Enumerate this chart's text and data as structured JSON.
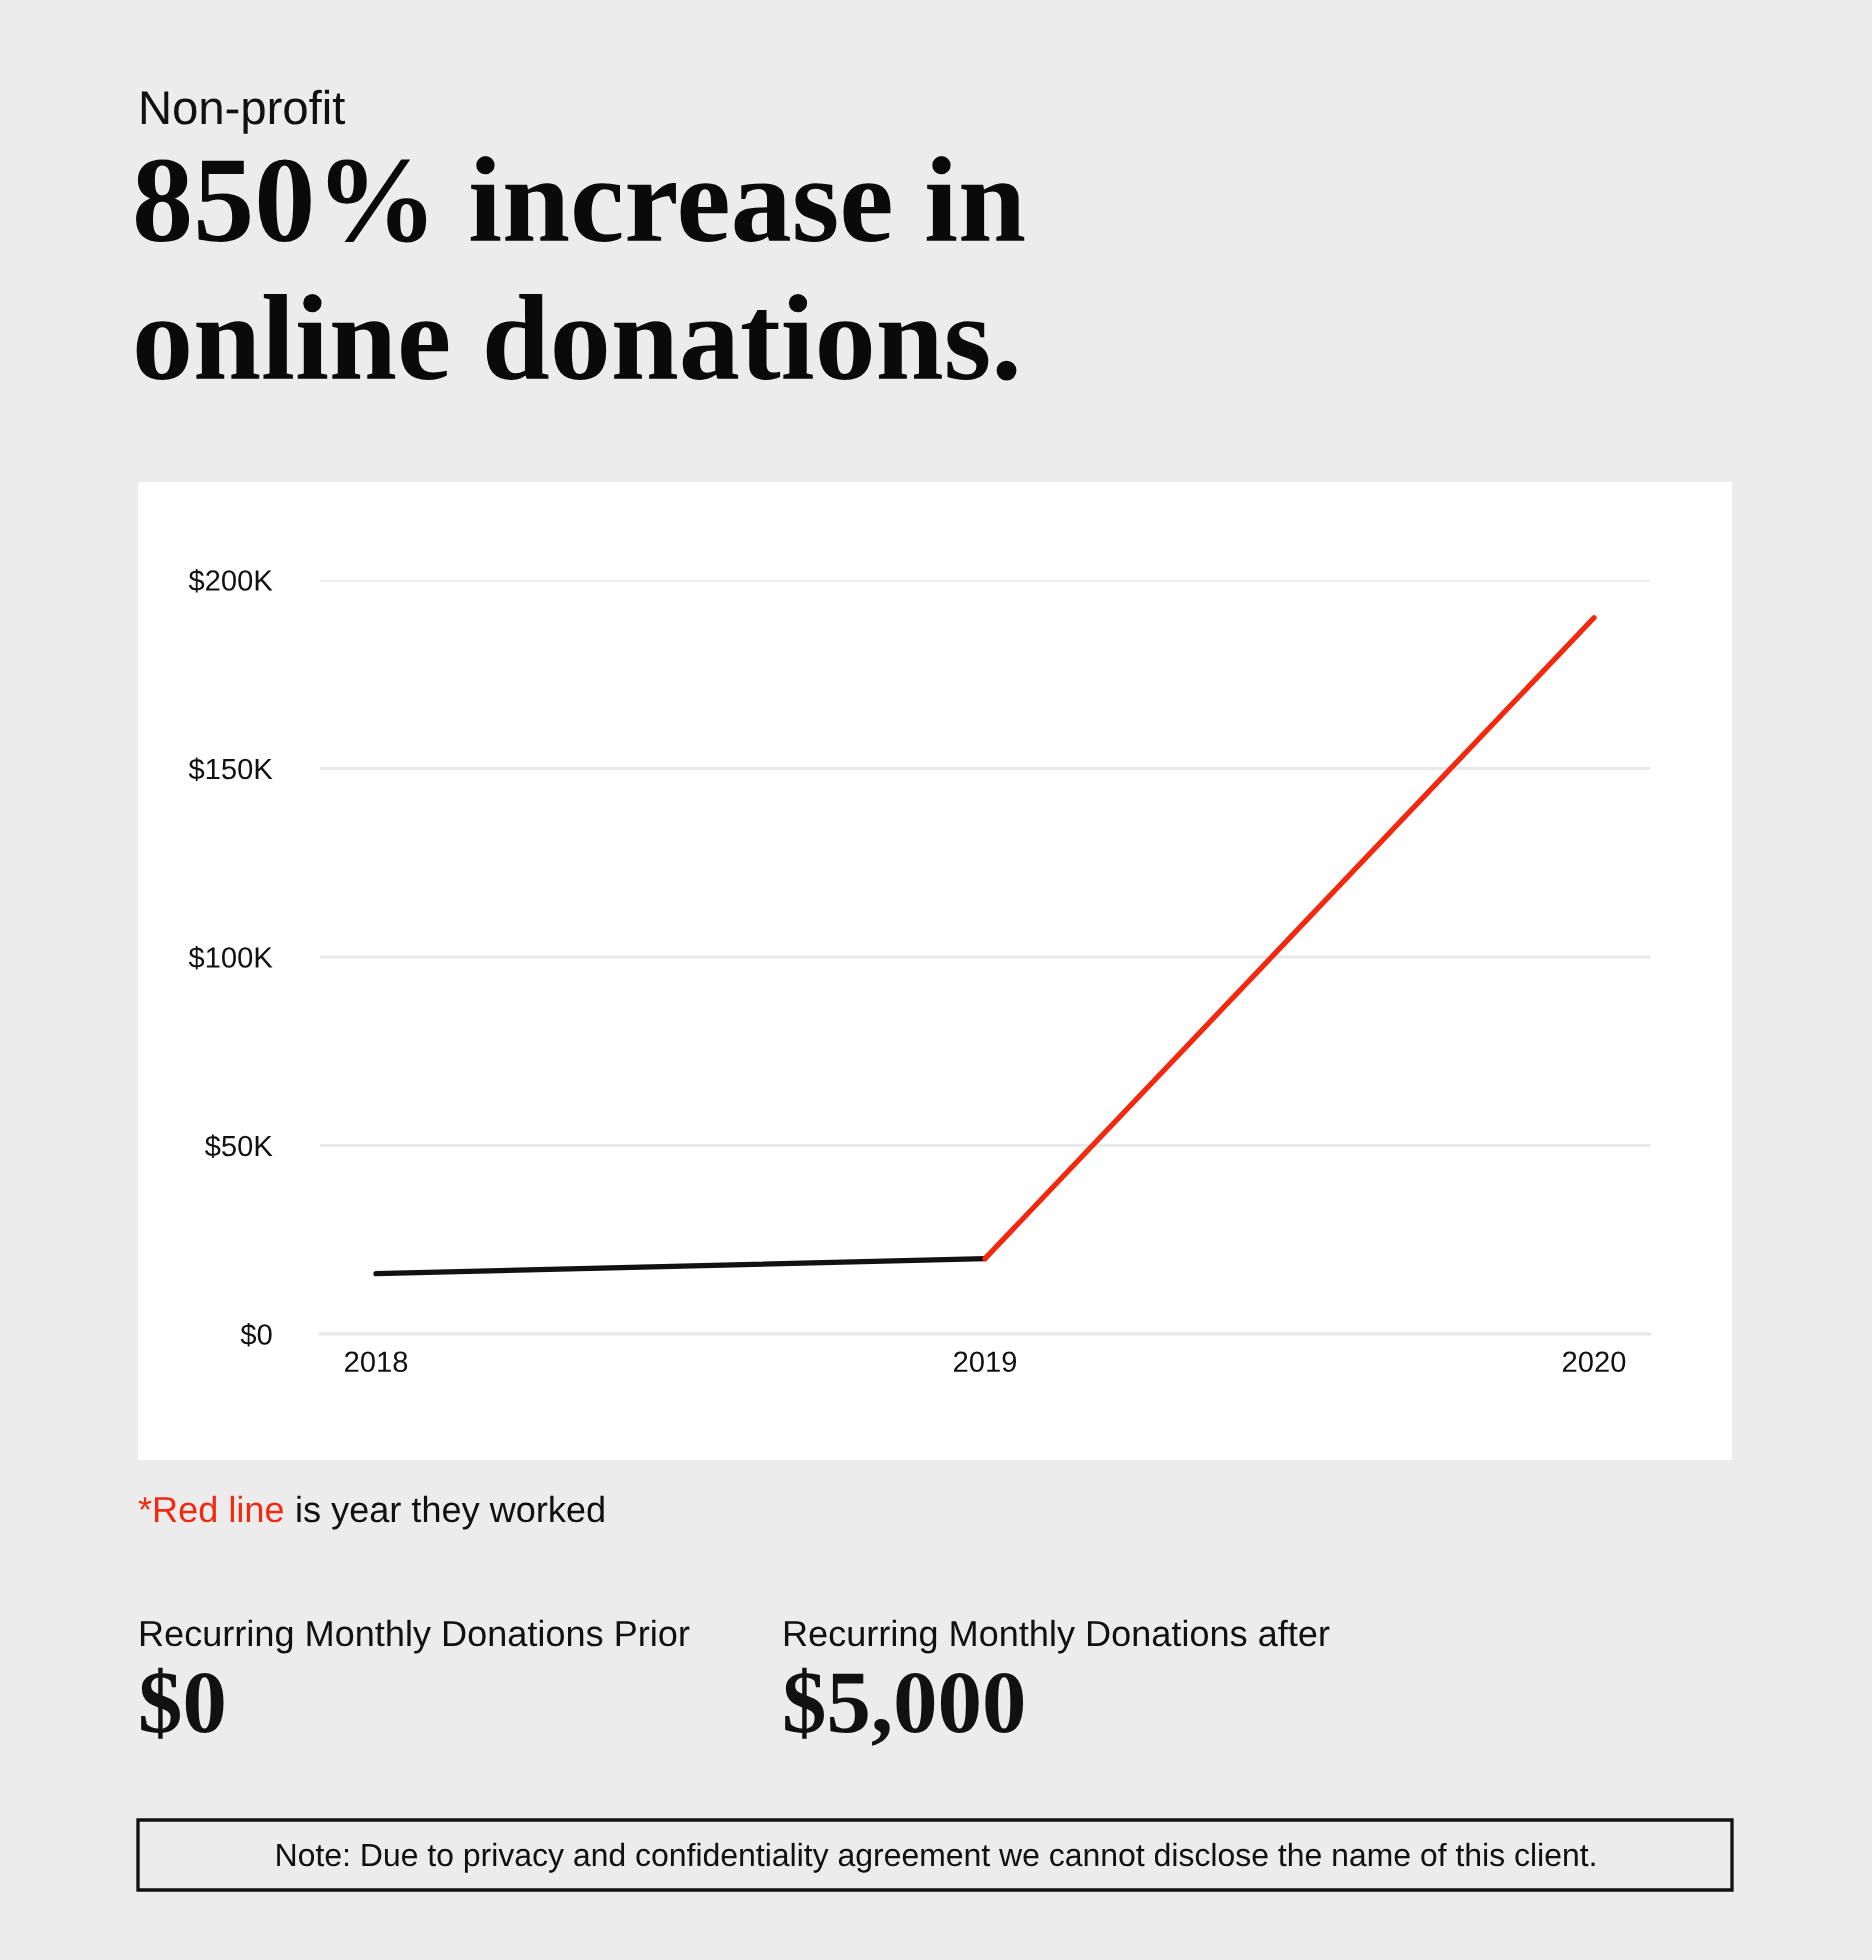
{
  "chart_data": {
    "type": "line",
    "subtitle": "Non-profit",
    "title": "850% increase in\nonline donations.",
    "categories": [
      "2018",
      "2019",
      "2020"
    ],
    "series": [
      {
        "color": "#111111",
        "values": [
          16000,
          20000,
          null
        ]
      },
      {
        "color": "#f2290f",
        "values": [
          null,
          20000,
          190000
        ]
      }
    ],
    "ylim": [
      0,
      200000
    ],
    "yticks": [
      {
        "value": 0,
        "label": "$0"
      },
      {
        "value": 50000,
        "label": "$50K"
      },
      {
        "value": 100000,
        "label": "$100K"
      },
      {
        "value": 150000,
        "label": "$150K"
      },
      {
        "value": 200000,
        "label": "$200K"
      }
    ],
    "grid": "y",
    "annotations": [
      "*Red line",
      "is year they worked",
      "Recurring Monthly Donations Prior",
      "$0",
      "Recurring Monthly Donations after",
      "$5,000",
      "Note: Due to privacy and confidentiality agreement we cannot disclose the name of this client."
    ]
  }
}
